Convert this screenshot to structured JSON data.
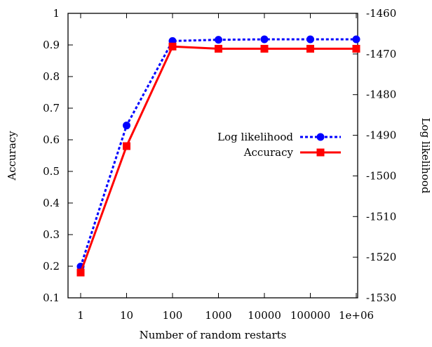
{
  "chart_data": {
    "type": "line",
    "title": "",
    "xlabel": "Number of random restarts",
    "ylabel_left": "Accuracy",
    "ylabel_right": "Log likelihood",
    "categories": [
      "1",
      "10",
      "100",
      "1000",
      "10000",
      "100000",
      "1e+06"
    ],
    "x_scale": "log",
    "y_left_range": [
      0.1,
      1.0
    ],
    "y_left_ticks": [
      "0.1",
      "0.2",
      "0.3",
      "0.4",
      "0.5",
      "0.6",
      "0.7",
      "0.8",
      "0.9",
      "1"
    ],
    "y_right_range": [
      -1530,
      -1460
    ],
    "y_right_ticks": [
      "-1530",
      "-1520",
      "-1510",
      "-1500",
      "-1490",
      "-1480",
      "-1470",
      "-1460"
    ],
    "grid": false,
    "legend_position": "right-middle",
    "series": [
      {
        "name": "Log likelihood",
        "axis": "right",
        "style": "dotted",
        "marker": "circle",
        "color": "#0000ff",
        "values": [
          -1522.3,
          -1487.6,
          -1466.8,
          -1466.5,
          -1466.4,
          -1466.4,
          -1466.4
        ]
      },
      {
        "name": "Accuracy",
        "axis": "left",
        "style": "solid",
        "marker": "square",
        "color": "#ff0000",
        "values": [
          0.18,
          0.58,
          0.895,
          0.888,
          0.888,
          0.888,
          0.888
        ]
      }
    ]
  }
}
